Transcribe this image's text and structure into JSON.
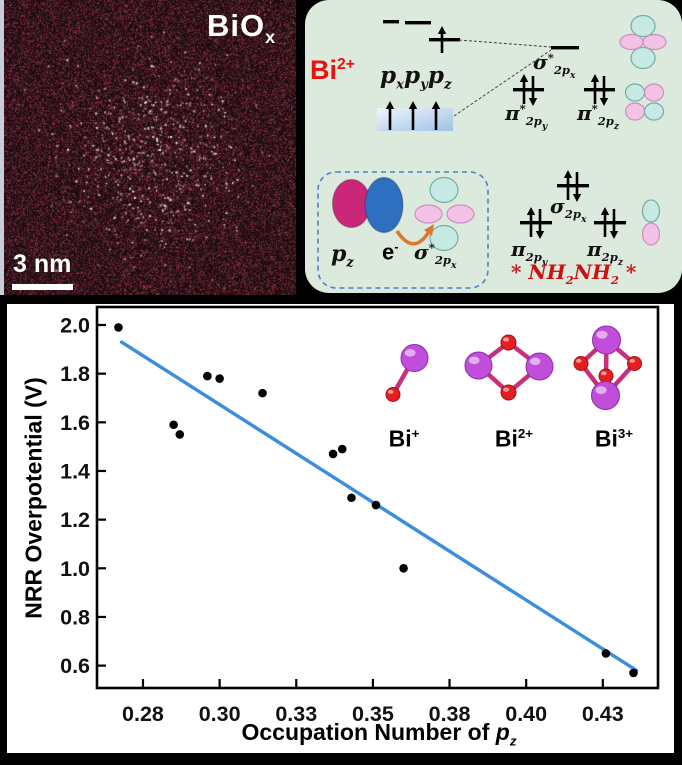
{
  "stem_panel": {
    "title_parts": [
      {
        "t": "BiO"
      },
      {
        "t": "x",
        "s": "sub"
      }
    ],
    "scale_bar_label": "3 nm"
  },
  "mo_panel": {
    "ion_parts": [
      {
        "t": "Bi"
      },
      {
        "t": "2+",
        "s": "sup"
      }
    ],
    "p_orbitals_parts": [
      {
        "t": "p"
      },
      {
        "t": "x",
        "s": "sub"
      },
      {
        "t": "p"
      },
      {
        "t": "y",
        "s": "sub"
      },
      {
        "t": "p"
      },
      {
        "t": "z",
        "s": "sub"
      }
    ],
    "sigma_star_top_parts": [
      {
        "t": "σ"
      },
      {
        "t": "*",
        "s": "sup"
      },
      {
        "t": "2p",
        "s": "sub"
      },
      {
        "t": "x",
        "s": "ss"
      }
    ],
    "pi_star_y_parts": [
      {
        "t": "π"
      },
      {
        "t": "*",
        "s": "sup"
      },
      {
        "t": "2p",
        "s": "sub"
      },
      {
        "t": "y",
        "s": "ss"
      }
    ],
    "pi_star_z_parts": [
      {
        "t": "π"
      },
      {
        "t": "*",
        "s": "sup"
      },
      {
        "t": "2p",
        "s": "sub"
      },
      {
        "t": "z",
        "s": "ss"
      }
    ],
    "sigma_parts": [
      {
        "t": "σ"
      },
      {
        "t": "2p",
        "s": "sub"
      },
      {
        "t": "x",
        "s": "ss"
      }
    ],
    "pi_y_parts": [
      {
        "t": "π"
      },
      {
        "t": "2p",
        "s": "sub"
      },
      {
        "t": "y",
        "s": "ss"
      }
    ],
    "pi_z_parts": [
      {
        "t": "π"
      },
      {
        "t": "2p",
        "s": "sub"
      },
      {
        "t": "z",
        "s": "ss"
      }
    ],
    "inset_pz_parts": [
      {
        "t": "p"
      },
      {
        "t": "z",
        "s": "sub"
      }
    ],
    "inset_electron_parts": [
      {
        "t": "e"
      },
      {
        "t": "-",
        "s": "sup"
      }
    ],
    "inset_sigma_star_parts": [
      {
        "t": "σ"
      },
      {
        "t": "*",
        "s": "sup"
      },
      {
        "t": "2p",
        "s": "sub"
      },
      {
        "t": "x",
        "s": "ss"
      }
    ],
    "product_parts": [
      {
        "t": "* NH"
      },
      {
        "t": "2",
        "s": "sub"
      },
      {
        "t": "NH"
      },
      {
        "t": "2",
        "s": "sub"
      },
      {
        "t": " *"
      }
    ]
  },
  "chart_data": {
    "type": "scatter",
    "ylabel": "NRR Overpotential (V)",
    "xlabel_parts": [
      {
        "t": "Occupation Number of "
      },
      {
        "t": "p",
        "s": "i"
      },
      {
        "t": "z",
        "s": "i sub"
      }
    ],
    "xlim": [
      0.26,
      0.443
    ],
    "ylim": [
      0.508,
      2.074
    ],
    "grid": false,
    "x_ticks": [
      {
        "v": 0.275,
        "label": "0.28"
      },
      {
        "v": 0.3,
        "label": "0.30"
      },
      {
        "v": 0.325,
        "label": "0.33"
      },
      {
        "v": 0.35,
        "label": "0.35"
      },
      {
        "v": 0.375,
        "label": "0.38"
      },
      {
        "v": 0.4,
        "label": "0.40"
      },
      {
        "v": 0.425,
        "label": "0.43"
      }
    ],
    "y_ticks": [
      {
        "v": 2.0,
        "label": "2.0"
      },
      {
        "v": 1.8,
        "label": "1.8"
      },
      {
        "v": 1.6,
        "label": "1.6"
      },
      {
        "v": 1.4,
        "label": "1.4"
      },
      {
        "v": 1.2,
        "label": "1.2"
      },
      {
        "v": 1.0,
        "label": "1.0"
      },
      {
        "v": 0.8,
        "label": "0.8"
      },
      {
        "v": 0.6,
        "label": "0.6"
      }
    ],
    "points": [
      [
        0.267,
        1.99
      ],
      [
        0.285,
        1.59
      ],
      [
        0.287,
        1.55
      ],
      [
        0.296,
        1.79
      ],
      [
        0.3,
        1.78
      ],
      [
        0.314,
        1.72
      ],
      [
        0.337,
        1.47
      ],
      [
        0.34,
        1.49
      ],
      [
        0.343,
        1.29
      ],
      [
        0.351,
        1.26
      ],
      [
        0.36,
        1.0
      ],
      [
        0.426,
        0.65
      ],
      [
        0.435,
        0.57
      ]
    ],
    "point_color": "#000000",
    "trend_line": {
      "x1": 0.268,
      "y1": 1.93,
      "x2": 0.436,
      "y2": 0.58,
      "color": "#3b8ede"
    },
    "inset_labels": [
      [
        {
          "t": "Bi"
        },
        {
          "t": "+",
          "s": "sup"
        }
      ],
      [
        {
          "t": "Bi"
        },
        {
          "t": "2+",
          "s": "sup"
        }
      ],
      [
        {
          "t": "Bi"
        },
        {
          "t": "3+",
          "s": "sup"
        }
      ]
    ]
  }
}
